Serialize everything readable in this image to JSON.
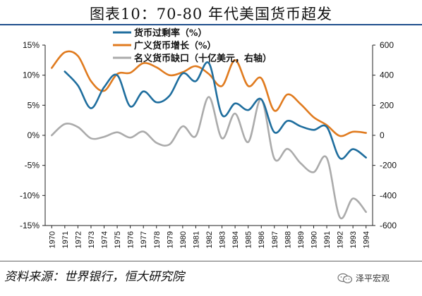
{
  "title": "图表10：70-80 年代美国货币超发",
  "source": "资料来源：世界银行，恒大研究院",
  "brand": {
    "text": "泽平宏观",
    "icon": "wechat-icon"
  },
  "chart_data": {
    "type": "line",
    "title": "图表10：70-80 年代美国货币超发",
    "x": [
      1970,
      1971,
      1972,
      1973,
      1974,
      1975,
      1976,
      1977,
      1978,
      1979,
      1980,
      1981,
      1982,
      1983,
      1984,
      1985,
      1986,
      1987,
      1988,
      1989,
      1990,
      1991,
      1992,
      1993,
      1994
    ],
    "y_left": {
      "ylim": [
        -15,
        15
      ],
      "ticks": [
        -15,
        -10,
        -5,
        0,
        5,
        10,
        15
      ],
      "unit": "%"
    },
    "y_right": {
      "ylim": [
        -600,
        600
      ],
      "ticks": [
        -600,
        -400,
        -200,
        0,
        200,
        400,
        600
      ]
    },
    "grid": false,
    "legend": "top-center",
    "series": [
      {
        "name": "货币过剩率（%）",
        "axis": "left",
        "color": "#1f6e9e",
        "values": [
          null,
          10.6,
          8.3,
          4.5,
          8.0,
          10.0,
          4.8,
          7.3,
          5.5,
          6.6,
          10.3,
          9.0,
          12.0,
          3.4,
          5.3,
          4.2,
          6.0,
          0.5,
          2.4,
          1.5,
          0.9,
          1.4,
          -3.8,
          -2.3,
          -3.7
        ]
      },
      {
        "name": "广义货币增长（%）",
        "axis": "left",
        "color": "#e07b1f",
        "values": [
          11.2,
          13.8,
          13.2,
          9.0,
          7.4,
          10.2,
          10.4,
          12.0,
          11.3,
          10.0,
          10.5,
          11.5,
          10.2,
          8.2,
          12.5,
          8.2,
          9.5,
          4.1,
          6.8,
          5.2,
          3.0,
          1.7,
          -0.1,
          0.6,
          0.4
        ]
      },
      {
        "name": "名义货币缺口（十亿美元，右轴）",
        "axis": "right",
        "color": "#ababab",
        "values": [
          0,
          75,
          55,
          -20,
          -10,
          20,
          -15,
          25,
          -50,
          -60,
          60,
          -5,
          255,
          -20,
          145,
          -45,
          240,
          -155,
          -90,
          -185,
          -245,
          -150,
          -545,
          -420,
          -510
        ]
      }
    ]
  }
}
